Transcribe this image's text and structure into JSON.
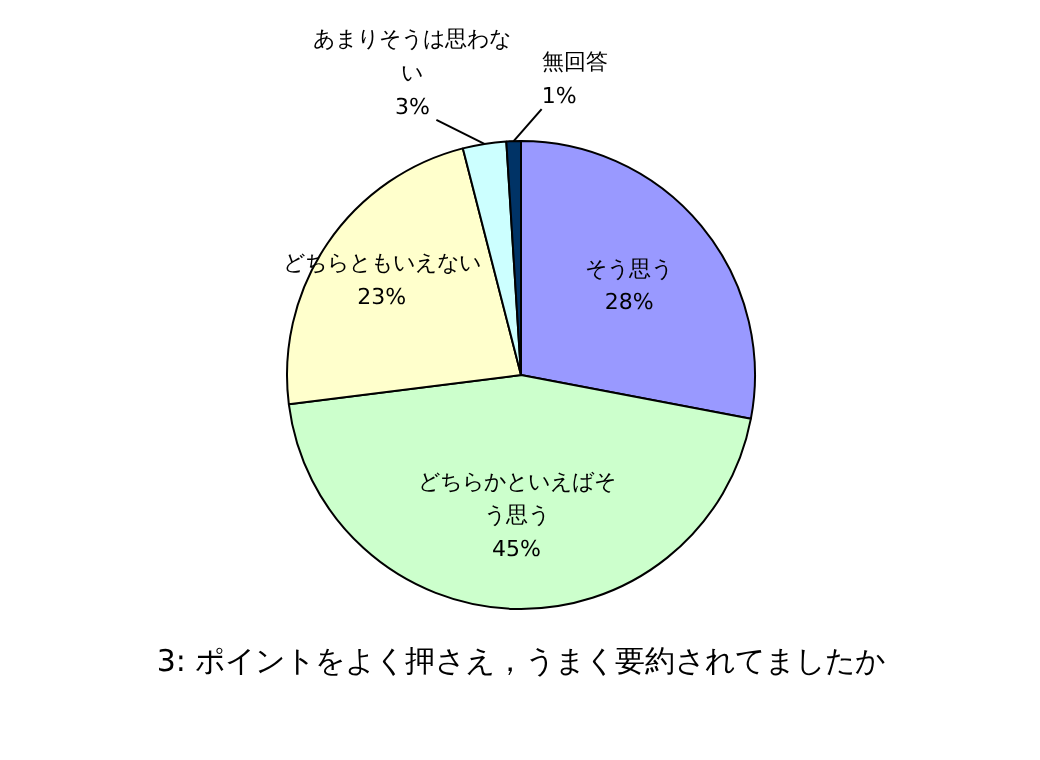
{
  "chart_data": {
    "type": "pie",
    "title": "3: ポイントをよく押さえ，うまく要約されてましたか",
    "categories": [
      "そう思う",
      "どちらかといえばそう思う",
      "どちらともいえない",
      "あまりそうは思わない",
      "無回答"
    ],
    "values": [
      28,
      45,
      23,
      3,
      1
    ],
    "colors": [
      "#9999ff",
      "#ccffcc",
      "#ffffcc",
      "#ccffff",
      "#003366"
    ],
    "value_labels": [
      "28%",
      "45%",
      "23%",
      "3%",
      "1%"
    ]
  }
}
